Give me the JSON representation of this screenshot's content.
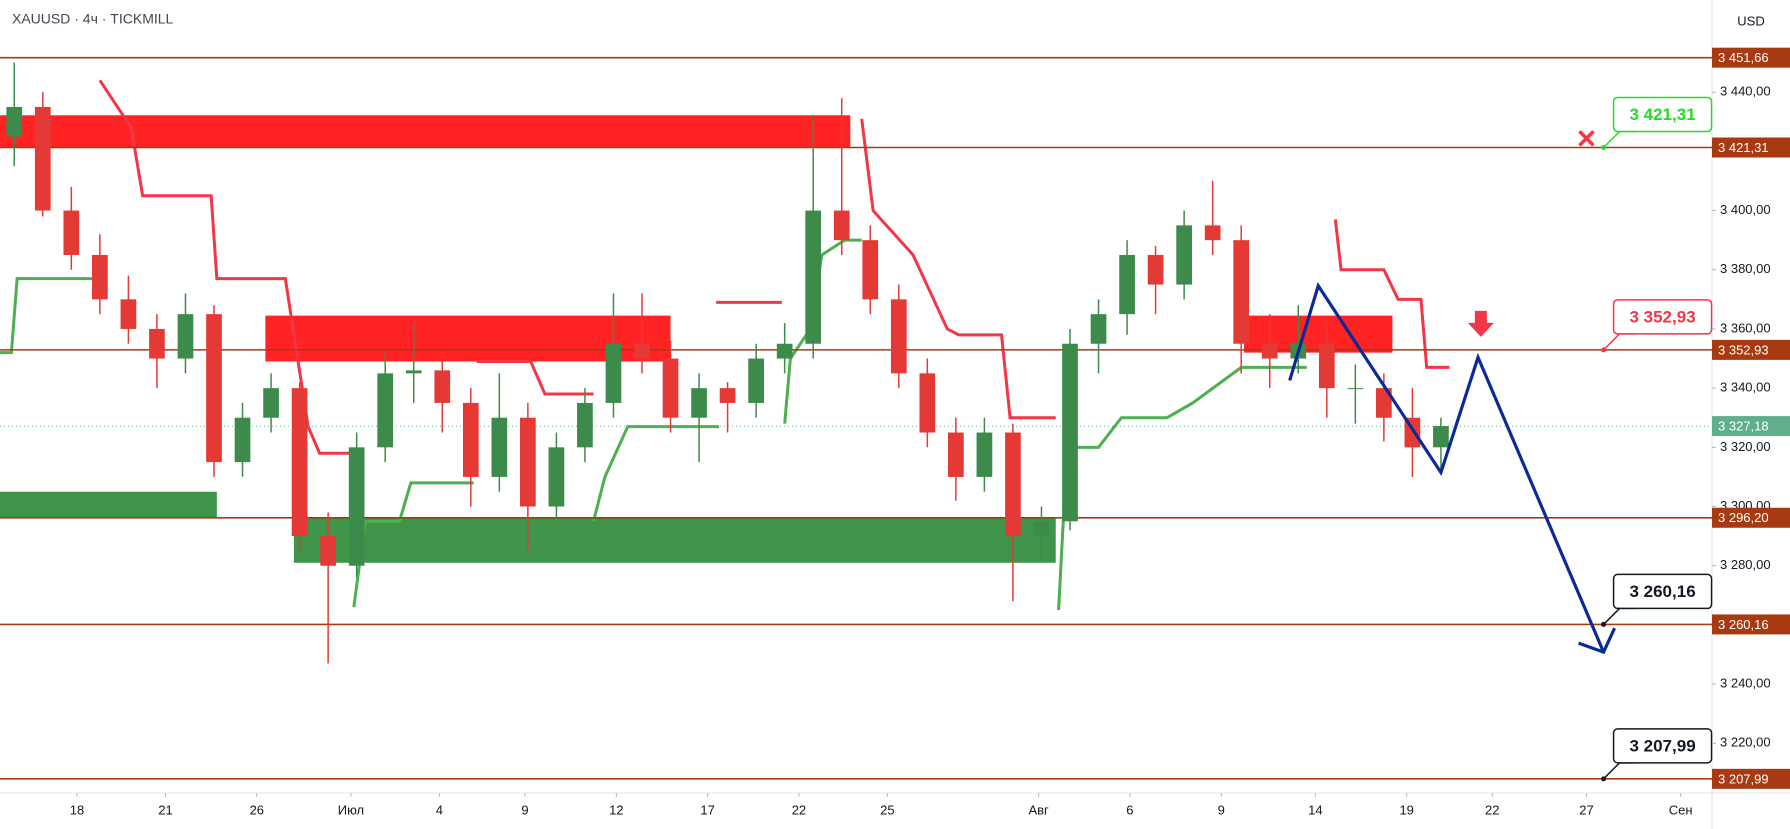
{
  "chart_data": {
    "type": "candlestick",
    "title": "XAUUSD · 4ч · TICKMILL",
    "currency": "USD",
    "xlim": [
      0,
      60
    ],
    "ylim": [
      3203.2,
      3471.15
    ],
    "grid": false,
    "up_color": "#3d8b4a",
    "down_color": "#e53935",
    "xticks": [
      {
        "value": 2.7,
        "label": "18"
      },
      {
        "value": 5.8,
        "label": "21"
      },
      {
        "value": 9,
        "label": "26"
      },
      {
        "value": 12.3,
        "label": "Июл"
      },
      {
        "value": 15.4,
        "label": "4"
      },
      {
        "value": 18.4,
        "label": "9"
      },
      {
        "value": 21.6,
        "label": "12"
      },
      {
        "value": 24.8,
        "label": "17"
      },
      {
        "value": 28,
        "label": "22"
      },
      {
        "value": 31.1,
        "label": "25"
      },
      {
        "value": 36.4,
        "label": "Авг"
      },
      {
        "value": 39.6,
        "label": "6"
      },
      {
        "value": 42.8,
        "label": "9"
      },
      {
        "value": 46.1,
        "label": "14"
      },
      {
        "value": 49.3,
        "label": "19"
      },
      {
        "value": 52.3,
        "label": "22"
      },
      {
        "value": 55.6,
        "label": "27"
      },
      {
        "value": 58.9,
        "label": "Сен"
      }
    ],
    "yticks": [
      {
        "value": 3220,
        "label": "3 220,00"
      },
      {
        "value": 3240,
        "label": "3 240,00"
      },
      {
        "value": 3260,
        "label": "3 260,00"
      },
      {
        "value": 3280,
        "label": "3 280,00"
      },
      {
        "value": 3300,
        "label": "3 300,00"
      },
      {
        "value": 3320,
        "label": "3 320,00"
      },
      {
        "value": 3340,
        "label": "3 340,00"
      },
      {
        "value": 3360,
        "label": "3 360,00"
      },
      {
        "value": 3380,
        "label": "3 380,00"
      },
      {
        "value": 3400,
        "label": "3 400,00"
      },
      {
        "value": 3420,
        "label": "3 420,00"
      },
      {
        "value": 3440,
        "label": "3 440,00"
      }
    ],
    "candles": {
      "x": [
        0.5,
        1.5,
        2.5,
        3.5,
        4.5,
        5.5,
        6.5,
        7.5,
        8.5,
        9.5,
        10.5,
        11.5,
        12.5,
        13.5,
        14.5,
        15.5,
        16.5,
        17.5,
        18.5,
        19.5,
        20.5,
        21.5,
        22.5,
        23.5,
        24.5,
        25.5,
        26.5,
        27.5,
        28.5,
        29.5,
        30.5,
        31.5,
        32.5,
        33.5,
        34.5,
        35.5,
        36.5,
        37.5,
        38.5,
        39.5,
        40.5,
        41.5,
        42.5,
        43.5,
        44.5,
        45.5,
        46.5,
        47.5,
        48.5,
        49.5,
        50.5
      ],
      "open": [
        3425,
        3435,
        3400,
        3385,
        3370,
        3360,
        3350,
        3365,
        3315,
        3330,
        3340,
        3290,
        3280,
        3320,
        3345,
        3346,
        3335,
        3310,
        3330,
        3300,
        3320,
        3335,
        3355,
        3350,
        3330,
        3340,
        3335,
        3350,
        3355,
        3400,
        3390,
        3370,
        3345,
        3325,
        3310,
        3325,
        3290,
        3295,
        3355,
        3365,
        3385,
        3375,
        3395,
        3390,
        3355,
        3350,
        3355,
        3340,
        3340,
        3330,
        3320
      ],
      "high": [
        3450,
        3440,
        3408,
        3392,
        3378,
        3365,
        3372,
        3368,
        3335,
        3345,
        3342,
        3298,
        3325,
        3352,
        3362,
        3350,
        3340,
        3345,
        3335,
        3325,
        3340,
        3372,
        3372,
        3356,
        3345,
        3342,
        3355,
        3362,
        3432,
        3438,
        3395,
        3375,
        3350,
        3330,
        3330,
        3328,
        3300,
        3360,
        3370,
        3390,
        3388,
        3400,
        3410,
        3395,
        3365,
        3368,
        3362,
        3348,
        3345,
        3340,
        3330
      ],
      "low": [
        3415,
        3398,
        3380,
        3365,
        3355,
        3340,
        3345,
        3310,
        3310,
        3325,
        3285,
        3247,
        3276,
        3315,
        3335,
        3325,
        3300,
        3305,
        3285,
        3296,
        3315,
        3330,
        3345,
        3325,
        3315,
        3325,
        3330,
        3345,
        3350,
        3385,
        3365,
        3340,
        3320,
        3302,
        3305,
        3268,
        3282,
        3292,
        3345,
        3358,
        3365,
        3370,
        3385,
        3345,
        3340,
        3345,
        3330,
        3328,
        3322,
        3310,
        3312
      ],
      "close": [
        3435,
        3400,
        3385,
        3370,
        3360,
        3350,
        3365,
        3315,
        3330,
        3340,
        3290,
        3280,
        3320,
        3345,
        3346,
        3335,
        3310,
        3330,
        3300,
        3320,
        3335,
        3355,
        3350,
        3330,
        3340,
        3335,
        3350,
        3355,
        3400,
        3390,
        3370,
        3345,
        3325,
        3310,
        3325,
        3290,
        3295,
        3355,
        3365,
        3385,
        3375,
        3395,
        3390,
        3355,
        3350,
        3355,
        3340,
        3340,
        3330,
        3320,
        3327.18
      ]
    },
    "zones": [
      {
        "color": "#ff1010",
        "x0": 0,
        "x1": 29.8,
        "y0": 3421.31,
        "y1": 3432.2
      },
      {
        "color": "#ff1010",
        "x0": 9.3,
        "x1": 23.5,
        "y0": 3349,
        "y1": 3364.5
      },
      {
        "color": "#ff1010",
        "x0": 43.6,
        "x1": 48.8,
        "y0": 3352,
        "y1": 3364.5
      },
      {
        "color": "#2e8b3a",
        "x0": 0,
        "x1": 7.6,
        "y0": 3296.2,
        "y1": 3305
      },
      {
        "color": "#2e8b3a",
        "x0": 10.3,
        "x1": 37,
        "y0": 3281,
        "y1": 3296.2
      }
    ],
    "supertrend": [
      {
        "color": "#4caf50",
        "x": [
          0,
          0.4,
          0.6,
          3.4
        ],
        "y": [
          3352,
          3352,
          3377,
          3377
        ]
      },
      {
        "color": "#f23645",
        "x": [
          3.5,
          4.6,
          5,
          7.4,
          7.6,
          10,
          10.8,
          11.2,
          12.3
        ],
        "y": [
          3444,
          3428,
          3405,
          3405,
          3377,
          3377,
          3327,
          3318,
          3318
        ]
      },
      {
        "color": "#4caf50",
        "x": [
          12.4,
          12.8,
          14,
          14.4,
          16.6
        ],
        "y": [
          3266,
          3295,
          3295,
          3308,
          3308
        ]
      },
      {
        "color": "#f23645",
        "x": [
          16.7,
          18.6,
          19.1,
          20.8
        ],
        "y": [
          3349,
          3349,
          3338,
          3338
        ]
      },
      {
        "color": "#4caf50",
        "x": [
          20.8,
          21.2,
          22,
          25.2
        ],
        "y": [
          3295,
          3310,
          3327,
          3327
        ]
      },
      {
        "color": "#f23645",
        "x": [
          25.1,
          27.4
        ],
        "y": [
          3369,
          3369
        ]
      },
      {
        "color": "#4caf50",
        "x": [
          27.5,
          27.7,
          28.4,
          28.8,
          29.6,
          30.2
        ],
        "y": [
          3328,
          3350,
          3360,
          3385,
          3390,
          3390
        ]
      },
      {
        "color": "#f23645",
        "x": [
          30.2,
          30.6,
          32,
          33.2,
          33.6,
          35.1,
          35.4,
          37
        ],
        "y": [
          3431,
          3400,
          3385,
          3360,
          3358,
          3358,
          3330,
          3330
        ]
      },
      {
        "color": "#4caf50",
        "x": [
          37.1,
          37.4,
          38.5,
          39.3,
          40.9,
          41.8,
          43.5,
          45.8
        ],
        "y": [
          3265,
          3320,
          3320,
          3330,
          3330,
          3335,
          3347,
          3347
        ]
      },
      {
        "color": "#f23645",
        "x": [
          46.8,
          47,
          48.5,
          49,
          49.8,
          50,
          50.8
        ],
        "y": [
          3397,
          3380,
          3380,
          3370,
          3370,
          3347,
          3347
        ]
      }
    ],
    "levels": [
      {
        "value": 3451.66,
        "label": "3 451,66"
      },
      {
        "value": 3421.31,
        "label": "3 421,31"
      },
      {
        "value": 3352.93,
        "label": "3 352,93"
      },
      {
        "value": 3296.2,
        "label": "3 296,20"
      },
      {
        "value": 3260.16,
        "label": "3 260,16"
      },
      {
        "value": 3207.99,
        "label": "3 207,99"
      }
    ],
    "level_color": "#a83a12",
    "last_price": {
      "value": 3327.18,
      "label": "3 327,18",
      "color": "#5fb08a"
    },
    "projection": {
      "color": "#0c2a96",
      "x": [
        45.2,
        46.2,
        50.5,
        51.8,
        56.2
      ],
      "y": [
        3342.6,
        3374.6,
        3311.5,
        3350.4,
        3250.8
      ]
    },
    "callouts": [
      {
        "text": "3 421,31",
        "x": 56.2,
        "value": 3421.31,
        "color": "#22dd22"
      },
      {
        "text": "3 352,93",
        "x": 56.2,
        "value": 3352.93,
        "color": "#f23645"
      },
      {
        "text": "3 260,16",
        "x": 56.2,
        "value": 3260.16,
        "color": "#131722"
      },
      {
        "text": "3 207,99",
        "x": 56.2,
        "value": 3207.99,
        "color": "#131722"
      }
    ],
    "markers": [
      {
        "kind": "cross",
        "x": 55.6,
        "value": 3424.4,
        "color": "#f23645"
      },
      {
        "kind": "arrow-down",
        "x": 51.9,
        "value": 3358,
        "color": "#f23645"
      }
    ]
  }
}
